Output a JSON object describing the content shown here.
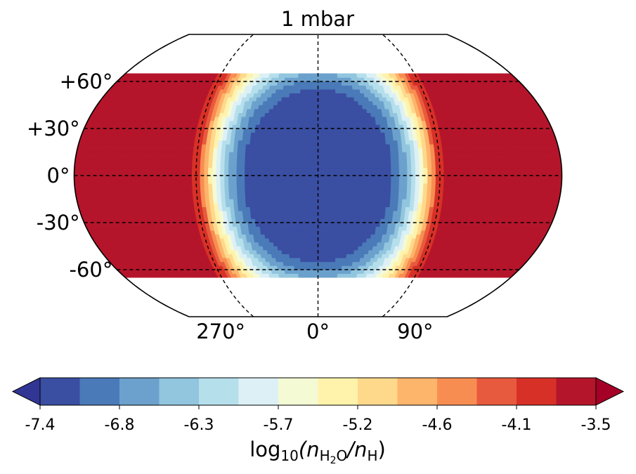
{
  "chart_data": {
    "type": "heatmap",
    "projection": "robinson",
    "title": "1 mbar",
    "lat_ticks": [
      "+60°",
      "+30°",
      "0°",
      "-30°",
      "-60°"
    ],
    "lat_tick_values": [
      60,
      30,
      0,
      -30,
      -60
    ],
    "lon_ticks": [
      "270°",
      "0°",
      "90°"
    ],
    "lon_tick_values": [
      -90,
      0,
      90
    ],
    "lat_range": [
      -65,
      65
    ],
    "field_description_levels": "contour levels of log10 water mixing ratio",
    "colorbar": {
      "label_prefix": "log",
      "label_sub": "10",
      "label_expr": "(n",
      "label_sub_h2o": "H",
      "label_sub_2": "2",
      "label_sub_o": "O",
      "label_mid": "/n",
      "label_sub_h": "H",
      "label_end": ")",
      "tick_labels": [
        "-7.4",
        "-6.8",
        "-6.3",
        "-5.7",
        "-5.2",
        "-4.6",
        "-4.1",
        "-3.5"
      ],
      "vmin": -7.4,
      "vmax": -3.5,
      "extend": "both",
      "colors": [
        "#313695",
        "#3a4ea2",
        "#4a7ab8",
        "#6ba1cc",
        "#92c5de",
        "#b6dfec",
        "#dcf0f6",
        "#f4fad4",
        "#fff2ab",
        "#fed98c",
        "#fdb46b",
        "#f88d52",
        "#e85a3d",
        "#d73027",
        "#b5152b",
        "#a50026"
      ]
    },
    "substellar_lon": 0,
    "nightside_value": -3.7,
    "dayside_min_value": -7.3
  }
}
